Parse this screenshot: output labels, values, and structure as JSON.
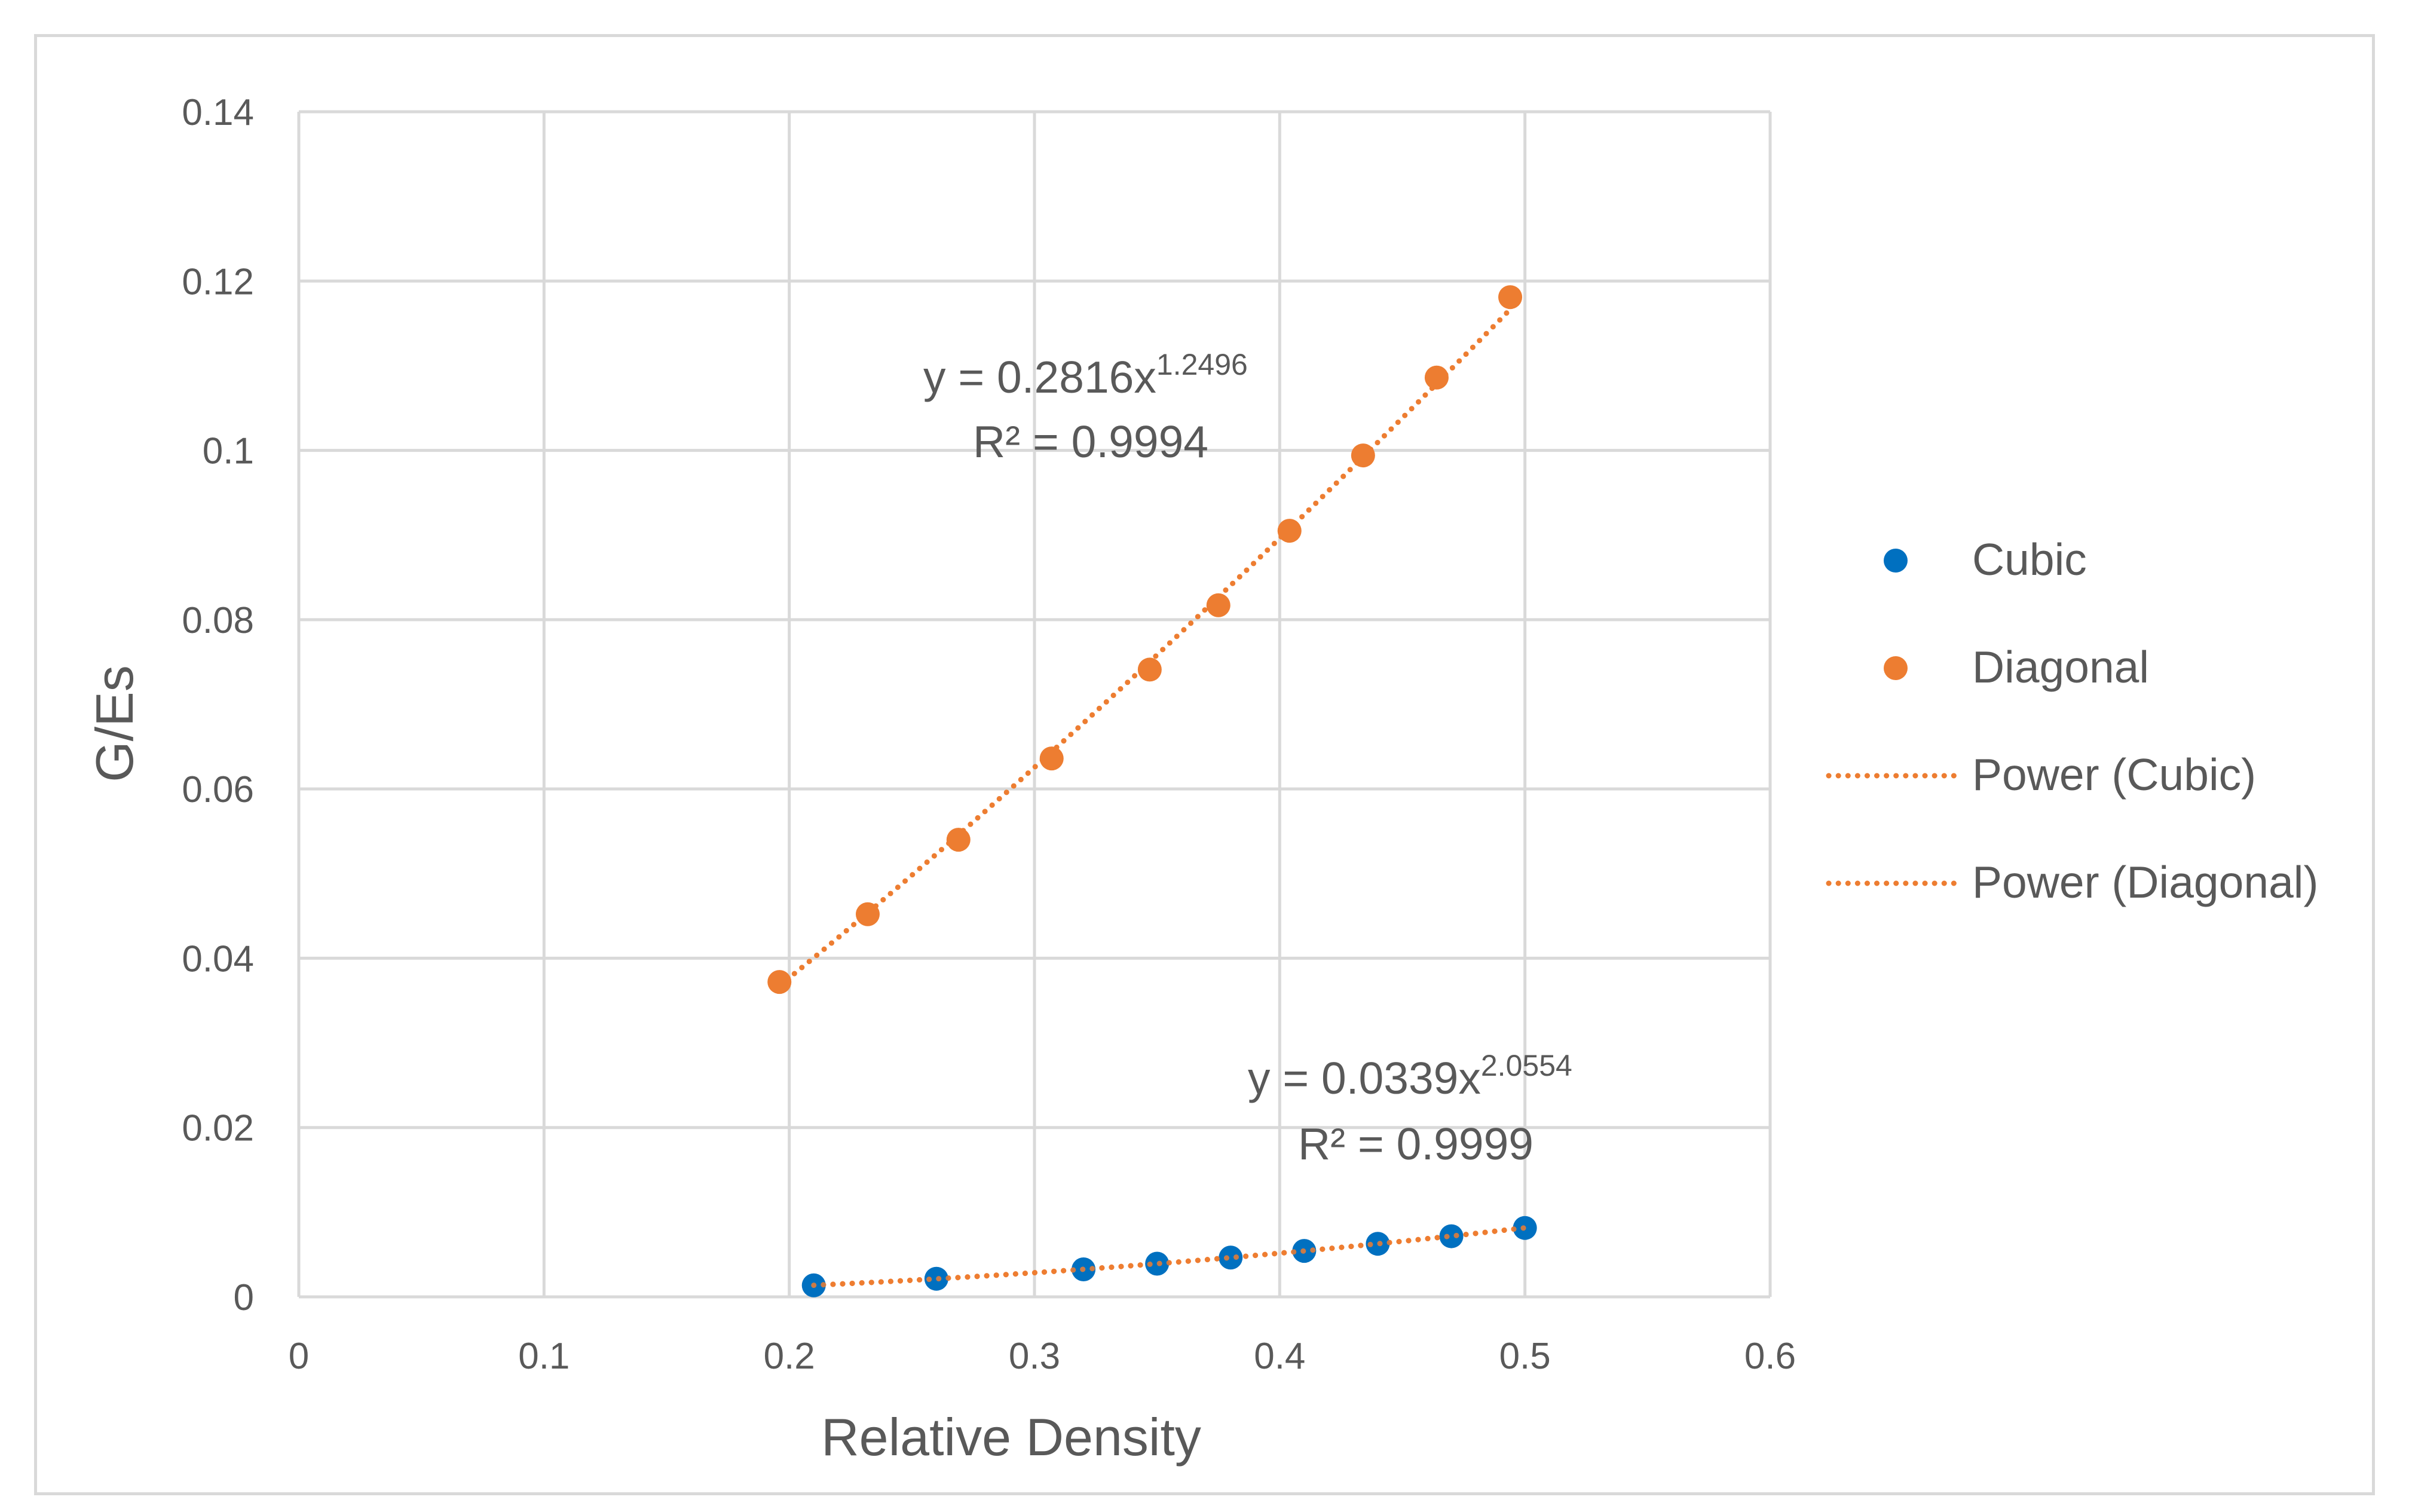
{
  "colors": {
    "cubic": "#0070C0",
    "diagonal": "#ED7D31",
    "grid": "#d9d9d9",
    "text": "#595959"
  },
  "chart_data": {
    "type": "scatter",
    "title": "",
    "xlabel": "Relative Density",
    "ylabel": "G/Es",
    "xlim": [
      0,
      0.6
    ],
    "ylim": [
      0,
      0.14
    ],
    "x_ticks": [
      0,
      0.1,
      0.2,
      0.3,
      0.4,
      0.5,
      0.6
    ],
    "y_ticks": [
      0,
      0.02,
      0.04,
      0.06,
      0.08,
      0.1,
      0.12,
      0.14
    ],
    "x_tick_labels": [
      "0",
      "0.1",
      "0.2",
      "0.3",
      "0.4",
      "0.5",
      "0.6"
    ],
    "y_tick_labels": [
      "0",
      "0.02",
      "0.04",
      "0.06",
      "0.08",
      "0.1",
      "0.12",
      "0.14"
    ],
    "grid": true,
    "legend_position": "right",
    "series": [
      {
        "name": "Cubic",
        "x": [
          0.21,
          0.26,
          0.32,
          0.35,
          0.38,
          0.41,
          0.44,
          0.47,
          0.5
        ],
        "y": [
          0.00136,
          0.00214,
          0.00325,
          0.00392,
          0.00464,
          0.00543,
          0.00627,
          0.00716,
          0.00814
        ]
      },
      {
        "name": "Diagonal",
        "x": [
          0.196,
          0.232,
          0.269,
          0.307,
          0.347,
          0.375,
          0.404,
          0.434,
          0.464,
          0.494
        ],
        "y": [
          0.0372,
          0.0452,
          0.054,
          0.0636,
          0.0741,
          0.0817,
          0.0905,
          0.0994,
          0.1086,
          0.1181
        ]
      }
    ],
    "trendlines": [
      {
        "name": "Power (Cubic)",
        "of_series": "Cubic",
        "coefficient": 0.0339,
        "exponent": 2.0554,
        "x_range": [
          0.21,
          0.5
        ],
        "equation_prefix": "y = 0.0339x",
        "equation_exponent": "2.0554",
        "r2_label": "R² = 0.9999"
      },
      {
        "name": "Power (Diagonal)",
        "of_series": "Diagonal",
        "coefficient": 0.2816,
        "exponent": 1.2496,
        "x_range": [
          0.196,
          0.494
        ],
        "equation_prefix": "y = 0.2816x",
        "equation_exponent": "1.2496",
        "r2_label": "R² = 0.9994"
      }
    ],
    "legend": [
      "Cubic",
      "Diagonal",
      "Power (Cubic)",
      "Power (Diagonal)"
    ]
  }
}
